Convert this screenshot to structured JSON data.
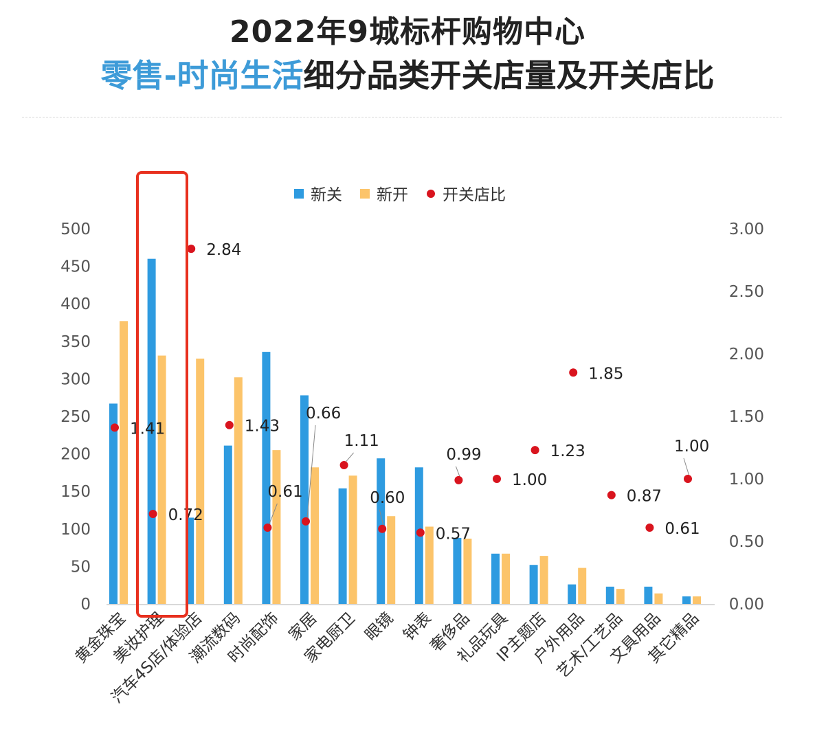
{
  "title_line1": "2022年9城标杆购物中心",
  "title_line2_highlight": "零售-时尚生活",
  "title_line2_rest": "细分品类开关店量及开关店比",
  "colors": {
    "closed": "#2e9be0",
    "opened": "#fcc46a",
    "ratio": "#d9141e",
    "highlight_box": "#e8301e",
    "title_highlight": "#3d9bd8"
  },
  "chart_data": {
    "type": "bar",
    "categories": [
      "黄金珠宝",
      "美妆护理",
      "汽车4S店/体验店",
      "潮流数码",
      "时尚配饰",
      "家居",
      "家电厨卫",
      "眼镜",
      "钟表",
      "奢侈品",
      "礼品玩具",
      "IP主题店",
      "户外用品",
      "艺术/工艺品",
      "文具用品",
      "其它精品"
    ],
    "series": [
      {
        "name": "新关",
        "axis": "left",
        "kind": "bar",
        "values": [
          267,
          460,
          115,
          211,
          336,
          278,
          154,
          194,
          182,
          88,
          67,
          52,
          26,
          23,
          23,
          10
        ]
      },
      {
        "name": "新开",
        "axis": "left",
        "kind": "bar",
        "values": [
          377,
          331,
          327,
          302,
          205,
          182,
          171,
          117,
          103,
          87,
          67,
          64,
          48,
          20,
          14,
          10
        ]
      },
      {
        "name": "开关店比",
        "axis": "right",
        "kind": "scatter",
        "values": [
          1.41,
          0.72,
          2.84,
          1.43,
          0.61,
          0.66,
          1.11,
          0.6,
          0.57,
          0.99,
          1.0,
          1.23,
          1.85,
          0.87,
          0.61,
          1.0
        ],
        "labels": [
          "1.41",
          "0.72",
          "2.84",
          "1.43",
          "0.61",
          "0.66",
          "1.11",
          "0.60",
          "0.57",
          "0.99",
          "1.00",
          "1.23",
          "1.85",
          "0.87",
          "0.61",
          "1.00"
        ]
      }
    ],
    "left_axis": {
      "ylim": [
        0,
        500
      ],
      "ticks": [
        "0",
        "50",
        "100",
        "150",
        "200",
        "250",
        "300",
        "350",
        "400",
        "450",
        "500"
      ]
    },
    "right_axis": {
      "ylim": [
        0,
        3
      ],
      "ticks": [
        "0.00",
        "0.50",
        "1.00",
        "1.50",
        "2.00",
        "2.50",
        "3.00"
      ]
    },
    "legend_position": "top-center",
    "highlighted_category": "美妆护理",
    "grid": false
  }
}
